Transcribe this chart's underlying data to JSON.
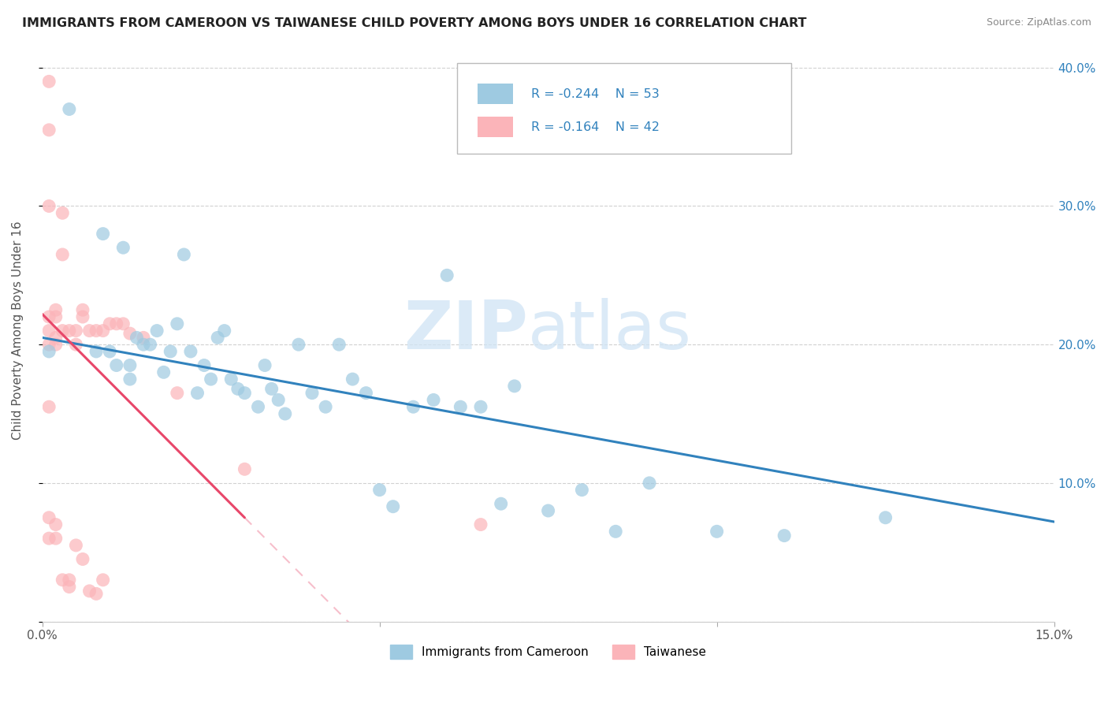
{
  "title": "IMMIGRANTS FROM CAMEROON VS TAIWANESE CHILD POVERTY AMONG BOYS UNDER 16 CORRELATION CHART",
  "source": "Source: ZipAtlas.com",
  "ylabel": "Child Poverty Among Boys Under 16",
  "xlim": [
    0.0,
    0.15
  ],
  "ylim": [
    0.0,
    0.42
  ],
  "xticks": [
    0.0,
    0.05,
    0.1,
    0.15
  ],
  "xticklabels": [
    "0.0%",
    "",
    "",
    "15.0%"
  ],
  "yticks": [
    0.0,
    0.1,
    0.2,
    0.3,
    0.4
  ],
  "yticklabels": [
    "",
    "10.0%",
    "20.0%",
    "30.0%",
    "40.0%"
  ],
  "legend_r1": "-0.244",
  "legend_n1": "53",
  "legend_r2": "-0.164",
  "legend_n2": "42",
  "color_blue": "#9ecae1",
  "color_pink": "#fbb4b9",
  "color_blue_line": "#3182bd",
  "color_pink_line": "#e8476a",
  "color_blue_text": "#3182bd",
  "background_color": "#ffffff",
  "grid_color": "#cccccc",
  "blue_scatter_x": [
    0.001,
    0.004,
    0.008,
    0.009,
    0.01,
    0.011,
    0.012,
    0.013,
    0.013,
    0.014,
    0.015,
    0.016,
    0.017,
    0.018,
    0.019,
    0.02,
    0.021,
    0.022,
    0.023,
    0.024,
    0.025,
    0.026,
    0.027,
    0.028,
    0.029,
    0.03,
    0.032,
    0.033,
    0.034,
    0.035,
    0.036,
    0.038,
    0.04,
    0.042,
    0.044,
    0.046,
    0.048,
    0.05,
    0.052,
    0.055,
    0.058,
    0.06,
    0.062,
    0.065,
    0.068,
    0.07,
    0.075,
    0.08,
    0.085,
    0.09,
    0.1,
    0.11,
    0.125
  ],
  "blue_scatter_y": [
    0.195,
    0.37,
    0.195,
    0.28,
    0.195,
    0.185,
    0.27,
    0.185,
    0.175,
    0.205,
    0.2,
    0.2,
    0.21,
    0.18,
    0.195,
    0.215,
    0.265,
    0.195,
    0.165,
    0.185,
    0.175,
    0.205,
    0.21,
    0.175,
    0.168,
    0.165,
    0.155,
    0.185,
    0.168,
    0.16,
    0.15,
    0.2,
    0.165,
    0.155,
    0.2,
    0.175,
    0.165,
    0.095,
    0.083,
    0.155,
    0.16,
    0.25,
    0.155,
    0.155,
    0.085,
    0.17,
    0.08,
    0.095,
    0.065,
    0.1,
    0.065,
    0.062,
    0.075
  ],
  "pink_scatter_x": [
    0.001,
    0.001,
    0.001,
    0.001,
    0.001,
    0.001,
    0.001,
    0.001,
    0.001,
    0.002,
    0.002,
    0.002,
    0.002,
    0.002,
    0.002,
    0.003,
    0.003,
    0.003,
    0.003,
    0.004,
    0.004,
    0.004,
    0.005,
    0.005,
    0.005,
    0.006,
    0.006,
    0.006,
    0.007,
    0.007,
    0.008,
    0.008,
    0.009,
    0.009,
    0.01,
    0.011,
    0.012,
    0.013,
    0.015,
    0.02,
    0.03,
    0.065
  ],
  "pink_scatter_y": [
    0.39,
    0.355,
    0.3,
    0.22,
    0.21,
    0.2,
    0.155,
    0.075,
    0.06,
    0.225,
    0.22,
    0.205,
    0.2,
    0.07,
    0.06,
    0.295,
    0.265,
    0.21,
    0.03,
    0.21,
    0.03,
    0.025,
    0.21,
    0.2,
    0.055,
    0.225,
    0.22,
    0.045,
    0.21,
    0.022,
    0.21,
    0.02,
    0.21,
    0.03,
    0.215,
    0.215,
    0.215,
    0.208,
    0.205,
    0.165,
    0.11,
    0.07
  ],
  "blue_line_x0": 0.0,
  "blue_line_x1": 0.15,
  "blue_line_y0": 0.205,
  "blue_line_y1": 0.072,
  "pink_line_x0": 0.0,
  "pink_line_x1": 0.03,
  "pink_line_y0": 0.222,
  "pink_line_y1": 0.075
}
